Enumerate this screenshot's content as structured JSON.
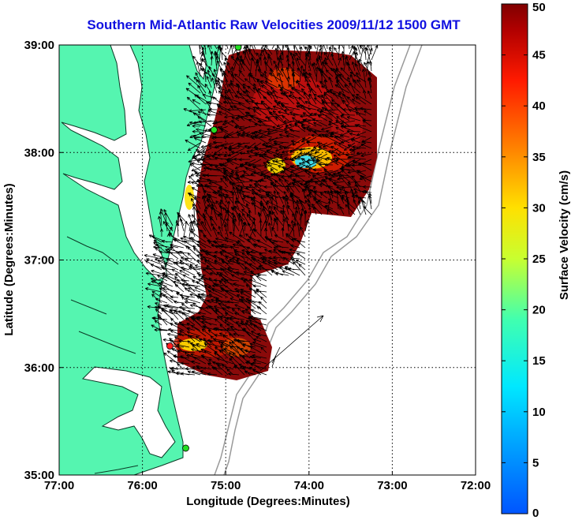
{
  "map": {
    "title": "Southern Mid-Atlantic Raw Velocities 2009/11/12 1500 GMT",
    "xlabel": "Longitude (Degrees:Minutes)",
    "ylabel": "Latitude (Degrees:Minutes)",
    "lon_range": [
      -77,
      -72
    ],
    "lat_range": [
      35,
      39
    ],
    "lon_ticks": [
      {
        "value": -77,
        "label": "77:00"
      },
      {
        "value": -76,
        "label": "76:00"
      },
      {
        "value": -75,
        "label": "75:00"
      },
      {
        "value": -74,
        "label": "74:00"
      },
      {
        "value": -73,
        "label": "73:00"
      },
      {
        "value": -72,
        "label": "72:00"
      }
    ],
    "lat_ticks": [
      {
        "value": 39,
        "label": "39:00"
      },
      {
        "value": 38,
        "label": "38:00"
      },
      {
        "value": 37,
        "label": "37:00"
      },
      {
        "value": 36,
        "label": "36:00"
      },
      {
        "value": 35,
        "label": "35:00"
      }
    ],
    "grid": true,
    "colors": {
      "land": "#55f5b0",
      "field_base": "#8a0a0a",
      "arrows": "#000000",
      "stations": "#22dd22",
      "highlight_station": "#ff2020",
      "title": "#1010e0"
    }
  },
  "colorbar": {
    "label": "Surface Velocity (cm/s)",
    "range": [
      0,
      50
    ],
    "ticks": [
      "0",
      "5",
      "10",
      "15",
      "20",
      "25",
      "30",
      "35",
      "40",
      "45",
      "50"
    ],
    "colormap": "jet"
  },
  "stations": [
    {
      "lon": -74.85,
      "lat": 38.98,
      "color": "green"
    },
    {
      "lon": -75.14,
      "lat": 38.21,
      "color": "green"
    },
    {
      "lon": -75.67,
      "lat": 36.2,
      "color": "red"
    },
    {
      "lon": -75.48,
      "lat": 35.25,
      "color": "green"
    }
  ]
}
